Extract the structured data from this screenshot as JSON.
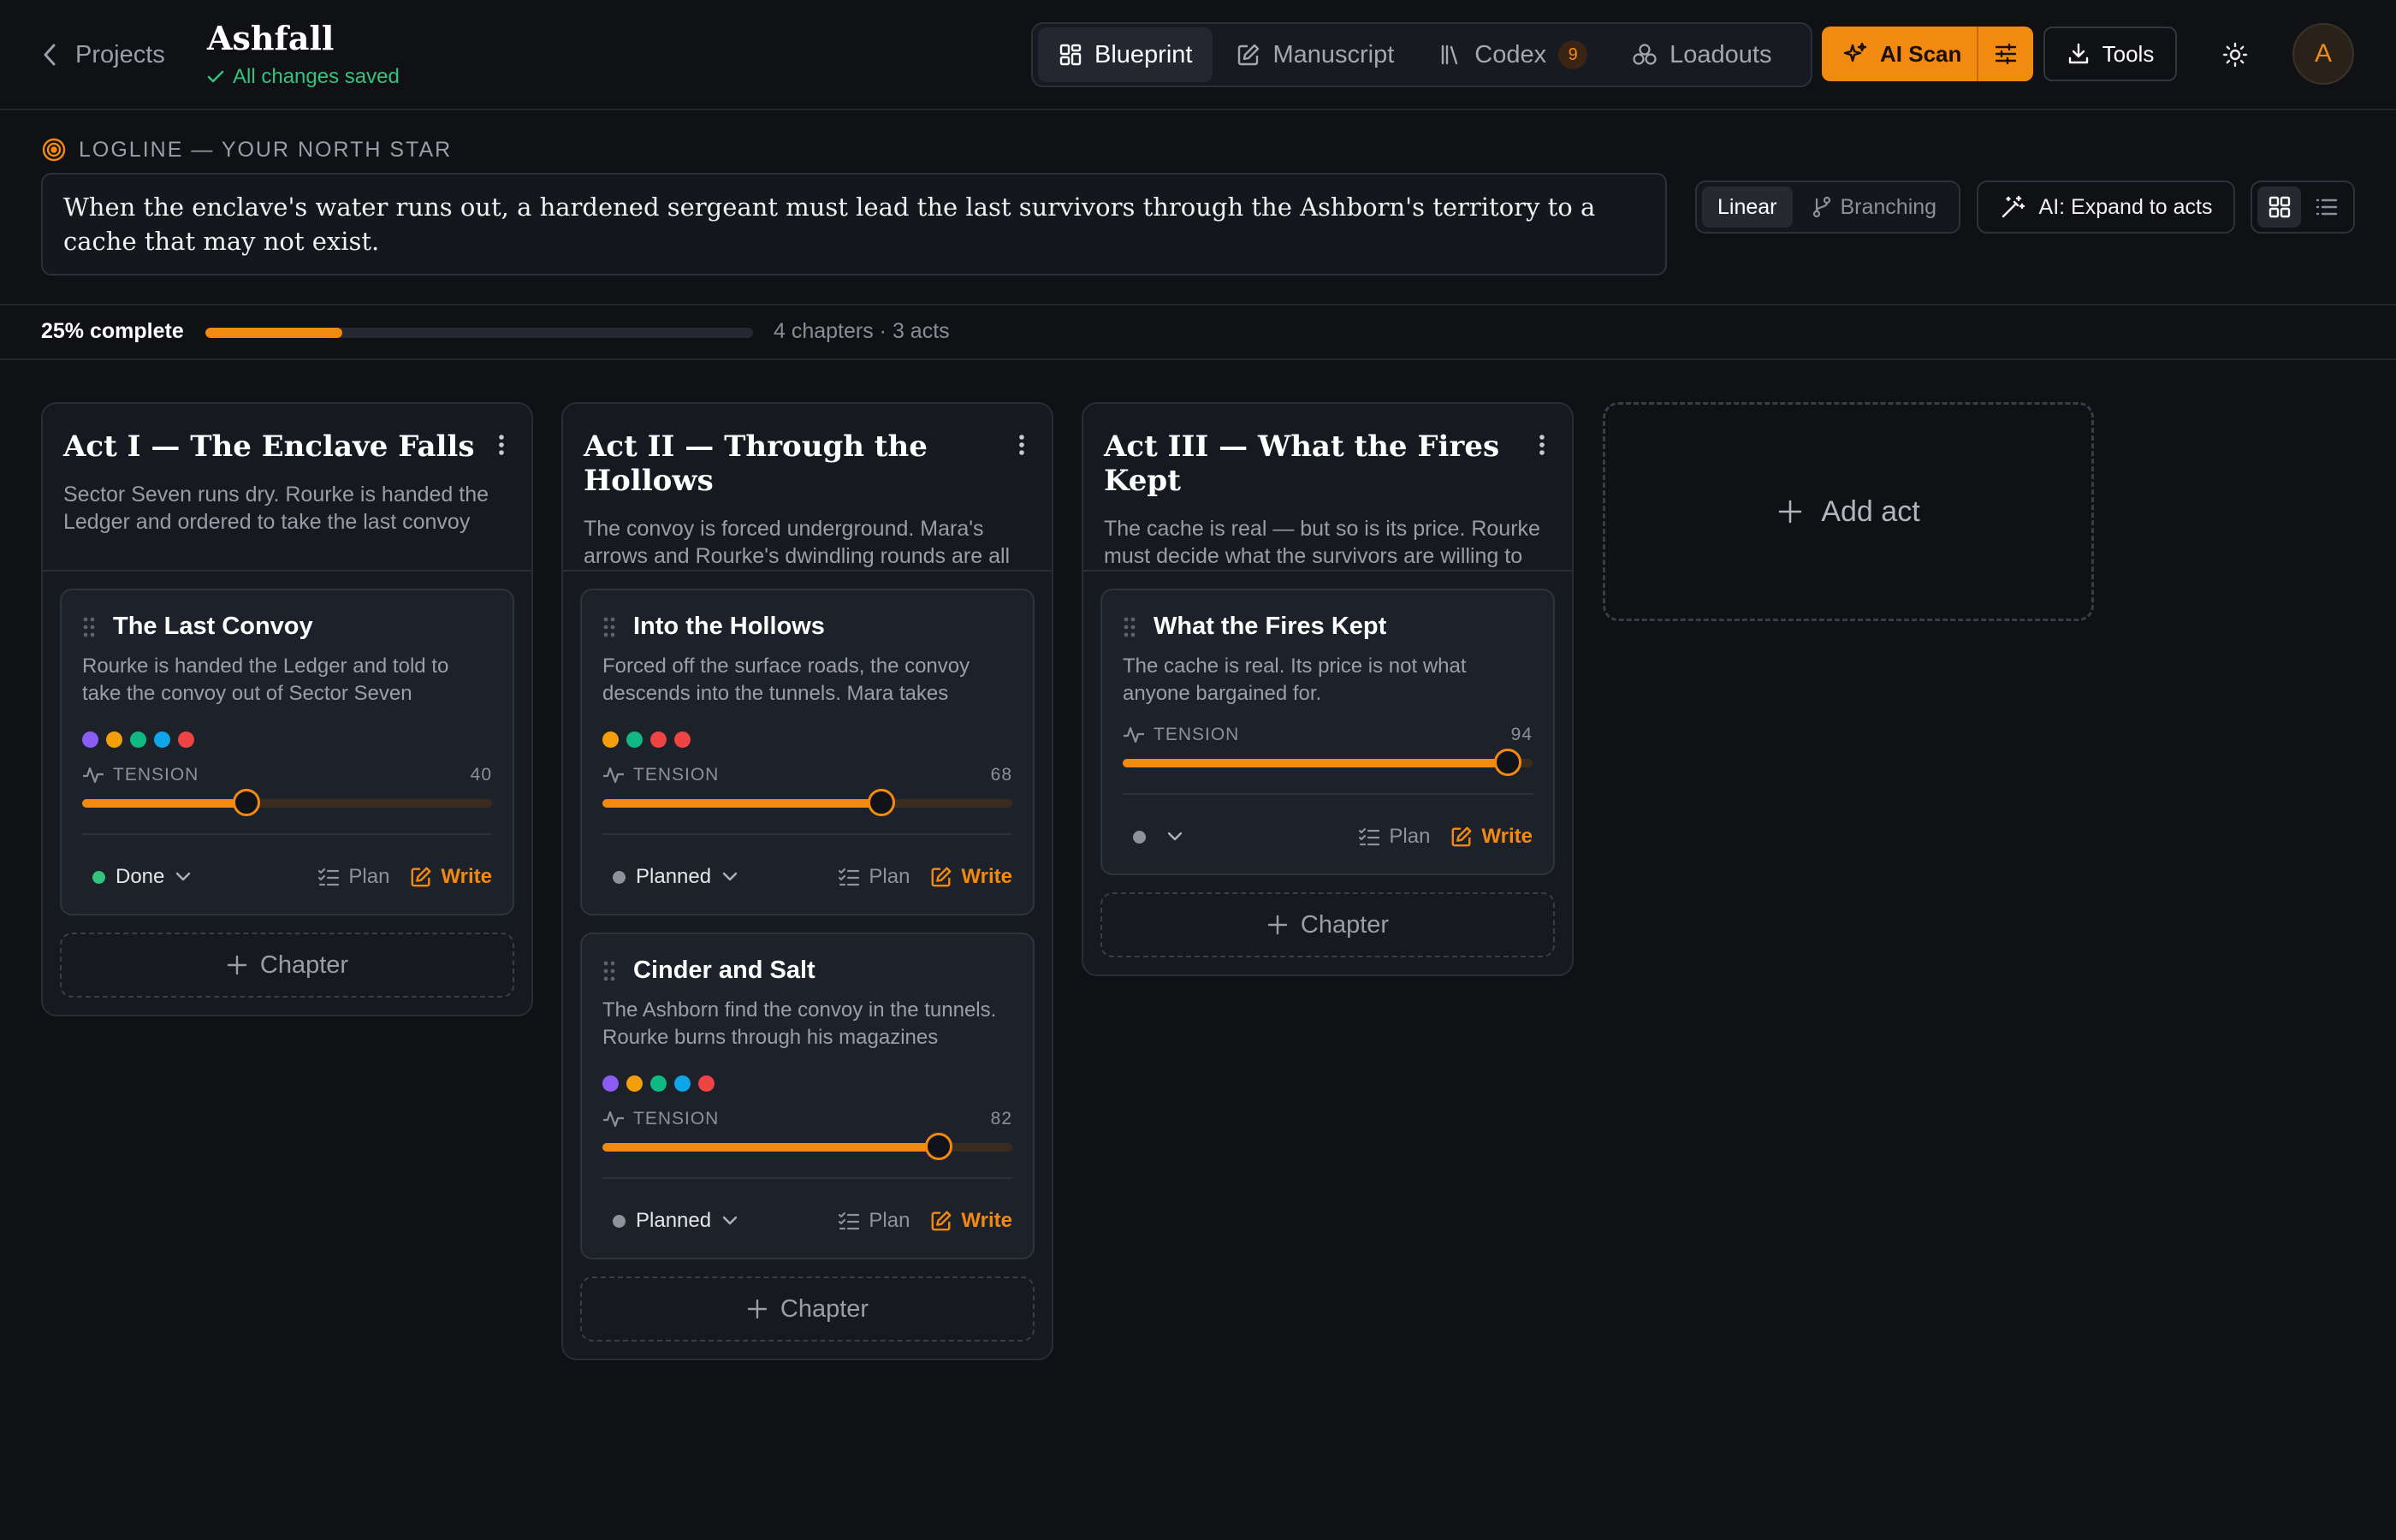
{
  "header": {
    "back_label": "Projects",
    "title": "Ashfall",
    "save_status": "All changes saved",
    "tabs": [
      {
        "label": "Blueprint",
        "icon": "dashboard-icon",
        "active": true
      },
      {
        "label": "Manuscript",
        "icon": "edit-icon",
        "active": false
      },
      {
        "label": "Codex",
        "icon": "library-icon",
        "active": false,
        "badge": "9"
      },
      {
        "label": "Loadouts",
        "icon": "cluster-icon",
        "active": false
      }
    ],
    "ai_scan_label": "AI Scan",
    "tools_label": "Tools",
    "avatar_initial": "A"
  },
  "logline": {
    "label": "LOGLINE — YOUR NORTH STAR",
    "text": "When the enclave's water runs out, a hardened sergeant must lead the last survivors through the Ashborn's territory to a cache that may not exist."
  },
  "controls": {
    "view_modes": [
      {
        "label": "Linear",
        "active": true
      },
      {
        "label": "Branching",
        "active": false
      }
    ],
    "expand_label": "AI: Expand to acts",
    "layout_modes": [
      "grid",
      "list"
    ]
  },
  "progress": {
    "label": "25% complete",
    "value": 0.25,
    "meta": "4 chapters · 3 acts"
  },
  "colors": {
    "accent": "#f28a12",
    "success": "#34c27d",
    "background": "#0f1115"
  },
  "acts": [
    {
      "title": "Act I — The Enclave Falls",
      "description": "Sector Seven runs dry. Rourke is handed the Ledger and ordered to take the last convoy",
      "chapters": [
        {
          "title": "The Last Convoy",
          "description": "Rourke is handed the Ledger and told to take the convoy out of Sector Seven",
          "dots": [
            "#8b5cf6",
            "#f59e0b",
            "#10b981",
            "#0ea5e9",
            "#ef4444"
          ],
          "tension_label": "TENSION",
          "tension": 40,
          "status": "Done",
          "status_color": "#34c27d"
        }
      ]
    },
    {
      "title": "Act II — Through the Hollows",
      "description": "The convoy is forced underground. Mara's arrows and Rourke's dwindling rounds are all",
      "chapters": [
        {
          "title": "Into the Hollows",
          "description": "Forced off the surface roads, the convoy descends into the tunnels. Mara takes",
          "dots": [
            "#f59e0b",
            "#10b981",
            "#ef4444",
            "#ef4444"
          ],
          "tension_label": "TENSION",
          "tension": 68,
          "status": "Planned",
          "status_color": "#8f9299"
        },
        {
          "title": "Cinder and Salt",
          "description": "The Ashborn find the convoy in the tunnels. Rourke burns through his magazines",
          "dots": [
            "#8b5cf6",
            "#f59e0b",
            "#10b981",
            "#0ea5e9",
            "#ef4444"
          ],
          "tension_label": "TENSION",
          "tension": 82,
          "status": "Planned",
          "status_color": "#8f9299"
        }
      ]
    },
    {
      "title": "Act III — What the Fires Kept",
      "description": "The cache is real — but so is its price. Rourke must decide what the survivors are willing to",
      "chapters": [
        {
          "title": "What the Fires Kept",
          "description": "The cache is real. Its price is not what anyone bargained for.",
          "dots": [],
          "tension_label": "TENSION",
          "tension": 94,
          "status": "",
          "status_color": "#8f9299"
        }
      ]
    }
  ],
  "chapter_actions": {
    "plan": "Plan",
    "write": "Write",
    "add_chapter": "Chapter"
  },
  "add_act_label": "Add act"
}
